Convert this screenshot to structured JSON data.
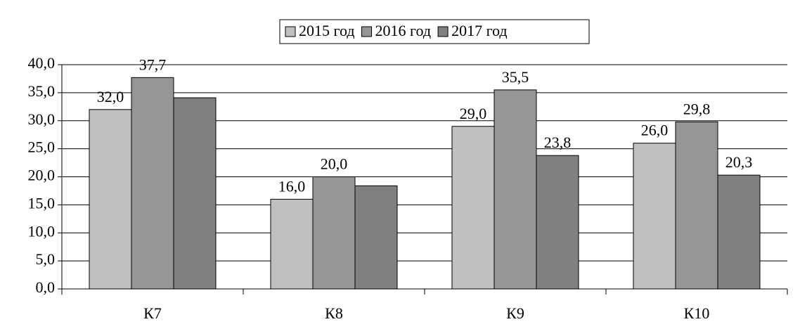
{
  "chart_data": {
    "type": "bar",
    "categories": [
      "К7",
      "К8",
      "К9",
      "К10"
    ],
    "series": [
      {
        "name": "2015 год",
        "color": "#c0c0c0",
        "values": [
          32.0,
          16.0,
          29.0,
          26.0
        ],
        "value_labels": [
          "32,0",
          "16,0",
          "29,0",
          "26,0"
        ]
      },
      {
        "name": "2016 год",
        "color": "#969696",
        "values": [
          37.7,
          20.0,
          35.5,
          29.8
        ],
        "value_labels": [
          "37,7",
          "20,0",
          "35,5",
          "29,8"
        ]
      },
      {
        "name": "2017 год",
        "color": "#808080",
        "values": [
          34.1,
          18.4,
          23.8,
          20.3
        ],
        "value_labels": [
          null,
          null,
          "23,8",
          "20,3"
        ]
      }
    ],
    "ylim": [
      0,
      40
    ],
    "yticks": [
      {
        "value": 0,
        "label": "0,0"
      },
      {
        "value": 5,
        "label": "5,0"
      },
      {
        "value": 10,
        "label": "10,0"
      },
      {
        "value": 15,
        "label": "15,0"
      },
      {
        "value": 20,
        "label": "20,0"
      },
      {
        "value": 25,
        "label": "25,0"
      },
      {
        "value": 30,
        "label": "30,0"
      },
      {
        "value": 35,
        "label": "35,0"
      },
      {
        "value": 40,
        "label": "40,0"
      }
    ],
    "grid": true,
    "legend": "top"
  }
}
